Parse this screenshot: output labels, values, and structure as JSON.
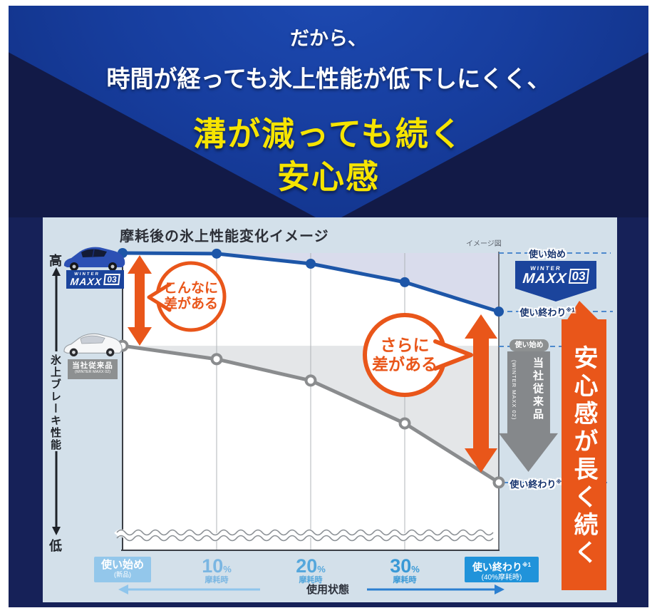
{
  "header": {
    "line1": "だから、",
    "line2": "時間が経っても氷上性能が低下しにくく、",
    "line3": "溝が減っても続く",
    "line4": "安心感",
    "accent_color": "#f6e400"
  },
  "figure": {
    "title": "摩耗後の氷上性能変化イメージ",
    "note": "イメージ図",
    "y_axis": {
      "top": "高",
      "bottom": "低",
      "label": "氷上ブレーキ性能"
    },
    "x_axis": {
      "label": "使用状態",
      "ticks": [
        {
          "main": "使い始め",
          "sub": "(新品)"
        },
        {
          "value": "10",
          "unit": "%",
          "sub": "摩耗時"
        },
        {
          "value": "20",
          "unit": "%",
          "sub": "摩耗時"
        },
        {
          "value": "30",
          "unit": "%",
          "sub": "摩耗時"
        },
        {
          "main": "使い終わり",
          "ref": "※1",
          "sub": "(40%摩耗時)"
        }
      ]
    },
    "legend": {
      "new_product": {
        "brand_top": "WINTER",
        "brand_main": "MAXX",
        "brand_num": "03"
      },
      "old_product": {
        "line1": "当社従来品",
        "line2": "(WINTER MAXX 02)"
      }
    },
    "annotations": {
      "bubble1_line1": "こんなに",
      "bubble1_line2": "差がある",
      "bubble2_line1": "さらに",
      "bubble2_line2": "差がある",
      "right_new_start": "使い始め",
      "right_new_end": {
        "text": "使い終わり",
        "ref": "※1"
      },
      "right_old_start": "使い始め",
      "right_old_end": {
        "text": "使い終わり",
        "ref": "※1"
      },
      "old_banner_jp": "当社従来品",
      "old_banner_en": "(WINTER MAXX 02)",
      "side_banner": "安心感が長く続く",
      "arrow_color": "#e9561a"
    }
  },
  "chart_data": {
    "type": "line",
    "title": "摩耗後の氷上性能変化イメージ",
    "xlabel": "使用状態",
    "ylabel": "氷上ブレーキ性能(高↑ / 低↓)",
    "x_categories": [
      "使い始め(新品)",
      "10%摩耗時",
      "20%摩耗時",
      "30%摩耗時",
      "使い終わり※1(40%摩耗時)"
    ],
    "ylim": [
      0,
      100
    ],
    "grid": "vertical-only",
    "legend_position": "left",
    "series": [
      {
        "name": "WINTER MAXX 03",
        "color": "#1d56a8",
        "point": "filled",
        "shade": "#d9dcec",
        "values": [
          100,
          99.8,
          96.4,
          90.2,
          80.3
        ]
      },
      {
        "name": "当社従来品(WINTER MAXX 02)",
        "color": "#8a8c8e",
        "point": "hollow",
        "shade": "#e4e6e8",
        "values": [
          68.8,
          64.3,
          57.1,
          42.7,
          22.8
        ]
      }
    ],
    "annotations": [
      "こんなに差がある",
      "さらに差がある",
      "安心感が長く続く"
    ]
  }
}
